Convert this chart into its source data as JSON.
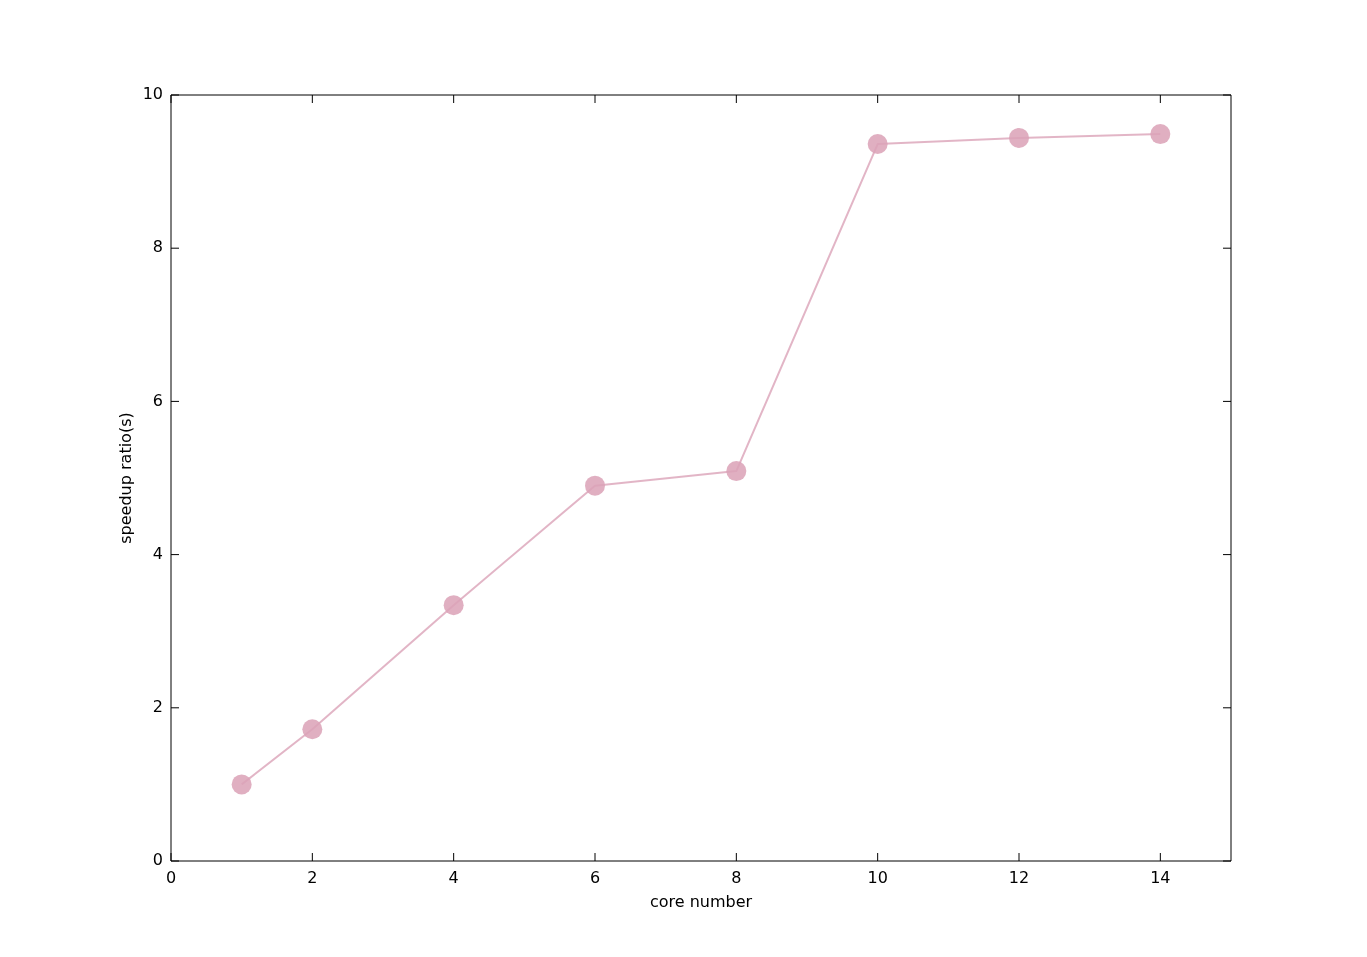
{
  "chart_data": {
    "type": "line",
    "xlabel": "core number",
    "ylabel": "speedup ratio(s)",
    "x": [
      1,
      2,
      4,
      6,
      8,
      10,
      12,
      14
    ],
    "series": [
      {
        "color": "#dba3b8",
        "values": [
          1.0,
          1.72,
          3.34,
          4.9,
          5.09,
          9.36,
          9.44,
          9.49
        ]
      }
    ],
    "xlim": [
      0,
      15
    ],
    "xticks": [
      0,
      2,
      4,
      6,
      8,
      10,
      12,
      14
    ],
    "ylim": [
      0,
      10
    ],
    "yticks": [
      0,
      2,
      4,
      6,
      8,
      10
    ],
    "grid": false,
    "legend": false,
    "marker": "circle",
    "line_style": "solid"
  }
}
